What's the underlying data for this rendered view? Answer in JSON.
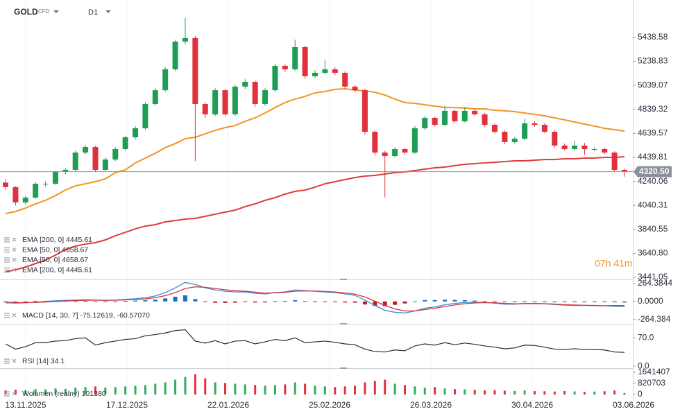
{
  "header": {
    "symbol": "GOLD",
    "instrument_type": "CFD",
    "timeframe": "D1"
  },
  "countdown": "07h 41m",
  "x_labels": [
    "13.11.2025",
    "17.12.2025",
    "22.01.2026",
    "25.02.2026",
    "26.03.2026",
    "30.04.2026",
    "03.06.2026"
  ],
  "chart_data": [
    {
      "type": "candlestick",
      "up_color": "#1f9d55",
      "down_color": "#e0313d",
      "candles": [
        [
          4230,
          4260,
          4170,
          4192
        ],
        [
          4192,
          4200,
          4040,
          4065
        ],
        [
          4065,
          4120,
          4050,
          4105
        ],
        [
          4105,
          4235,
          4095,
          4220
        ],
        [
          4220,
          4240,
          4195,
          4220
        ],
        [
          4220,
          4330,
          4210,
          4319
        ],
        [
          4319,
          4350,
          4300,
          4336
        ],
        [
          4336,
          4495,
          4325,
          4480
        ],
        [
          4480,
          4545,
          4465,
          4526
        ],
        [
          4526,
          4535,
          4320,
          4336
        ],
        [
          4336,
          4440,
          4325,
          4422
        ],
        [
          4422,
          4525,
          4410,
          4509
        ],
        [
          4509,
          4620,
          4495,
          4607
        ],
        [
          4607,
          4700,
          4590,
          4682
        ],
        [
          4682,
          4900,
          4670,
          4884
        ],
        [
          4884,
          5020,
          4870,
          4999
        ],
        [
          4999,
          5190,
          4985,
          5173
        ],
        [
          5173,
          5420,
          5160,
          5404
        ],
        [
          5404,
          5600,
          5380,
          5433
        ],
        [
          5433,
          5450,
          4410,
          4884
        ],
        [
          4884,
          4900,
          4770,
          4798
        ],
        [
          4798,
          5015,
          4785,
          4999
        ],
        [
          4999,
          5010,
          4780,
          4798
        ],
        [
          4798,
          5045,
          4785,
          5029
        ],
        [
          5029,
          5090,
          5010,
          5069
        ],
        [
          5069,
          5080,
          4860,
          4884
        ],
        [
          4884,
          5015,
          4870,
          4999
        ],
        [
          4999,
          5220,
          4985,
          5202
        ],
        [
          5202,
          5215,
          5150,
          5173
        ],
        [
          5173,
          5420,
          5160,
          5358
        ],
        [
          5358,
          5370,
          5095,
          5115
        ],
        [
          5115,
          5165,
          5100,
          5144
        ],
        [
          5144,
          5250,
          5130,
          5173
        ],
        [
          5173,
          5190,
          5125,
          5144
        ],
        [
          5144,
          5155,
          5010,
          5029
        ],
        [
          5029,
          5045,
          4980,
          4999
        ],
        [
          4999,
          5010,
          4630,
          4653
        ],
        [
          4653,
          4665,
          4460,
          4480
        ],
        [
          4480,
          4495,
          4105,
          4451
        ],
        [
          4451,
          4525,
          4440,
          4509
        ],
        [
          4509,
          4520,
          4460,
          4480
        ],
        [
          4480,
          4700,
          4470,
          4682
        ],
        [
          4682,
          4785,
          4670,
          4769
        ],
        [
          4769,
          4780,
          4695,
          4711
        ],
        [
          4711,
          4870,
          4700,
          4827
        ],
        [
          4827,
          4840,
          4725,
          4740
        ],
        [
          4740,
          4860,
          4730,
          4827
        ],
        [
          4827,
          4840,
          4785,
          4798
        ],
        [
          4798,
          4810,
          4695,
          4711
        ],
        [
          4711,
          4725,
          4640,
          4653
        ],
        [
          4653,
          4665,
          4550,
          4567
        ],
        [
          4567,
          4610,
          4555,
          4595
        ],
        [
          4595,
          4760,
          4585,
          4723
        ],
        [
          4723,
          4740,
          4695,
          4711
        ],
        [
          4711,
          4725,
          4640,
          4653
        ],
        [
          4653,
          4665,
          4520,
          4538
        ],
        [
          4538,
          4555,
          4495,
          4509
        ],
        [
          4509,
          4580,
          4495,
          4538
        ],
        [
          4538,
          4560,
          4460,
          4509
        ],
        [
          4509,
          4525,
          4490,
          4509
        ],
        [
          4509,
          4520,
          4465,
          4480
        ],
        [
          4480,
          4490,
          4320,
          4336
        ],
        [
          4336,
          4345,
          4280,
          4320.5
        ]
      ],
      "series": [
        {
          "color": "#f39323",
          "values": [
            3972,
            3989,
            4018,
            4053,
            4082,
            4122,
            4168,
            4203,
            4220,
            4238,
            4261,
            4313,
            4336,
            4394,
            4434,
            4474,
            4521,
            4555,
            4596,
            4607,
            4636,
            4665,
            4688,
            4705,
            4740,
            4769,
            4809,
            4855,
            4896,
            4925,
            4948,
            4977,
            4988,
            5006,
            5011,
            5000,
            4994,
            4982,
            4959,
            4925,
            4896,
            4890,
            4878,
            4867,
            4855,
            4855,
            4850,
            4844,
            4844,
            4832,
            4827,
            4821,
            4809,
            4798,
            4786,
            4769,
            4752,
            4734,
            4717,
            4700,
            4682,
            4671,
            4658.67
          ]
        },
        {
          "color": "#e03a3a",
          "values": [
            3487,
            3504,
            3527,
            3556,
            3585,
            3626,
            3672,
            3701,
            3718,
            3730,
            3753,
            3787,
            3816,
            3845,
            3868,
            3880,
            3903,
            3914,
            3926,
            3932,
            3949,
            3967,
            3984,
            4001,
            4030,
            4053,
            4082,
            4105,
            4134,
            4157,
            4168,
            4192,
            4220,
            4238,
            4255,
            4272,
            4284,
            4290,
            4301,
            4313,
            4319,
            4330,
            4342,
            4353,
            4359,
            4371,
            4382,
            4388,
            4394,
            4399,
            4405,
            4411,
            4411,
            4417,
            4422,
            4422,
            4428,
            4428,
            4434,
            4434,
            4440,
            4440,
            4445.61
          ]
        }
      ],
      "legend": [
        "EMA [200, 0] 4445.61",
        "EMA [50, 0] 4658.67",
        "EMA [50, 0] 4658.67",
        "EMA [200, 0] 4445.61"
      ],
      "ylim": [
        3424,
        5750
      ],
      "yticks": [
        5438.58,
        5238.83,
        5039.07,
        4839.32,
        4639.57,
        4439.81,
        4240.06,
        4040.31,
        3840.55,
        {
          "value": 3640.8,
          "label": "3640.80"
        },
        3441.05
      ],
      "last_price": {
        "value": 4320.5,
        "label": "4320.50"
      }
    },
    {
      "type": "macd",
      "label": "MACD [14, 30, 7] -75.12619, -60.57070",
      "series": [
        {
          "color": "#3a8ad6",
          "values": [
            -20,
            -25,
            -20,
            -10,
            0,
            10,
            15,
            20,
            25,
            20,
            15,
            20,
            30,
            40,
            55,
            80,
            130,
            200,
            280,
            250,
            200,
            170,
            150,
            140,
            140,
            120,
            110,
            130,
            140,
            170,
            160,
            150,
            140,
            130,
            110,
            90,
            20,
            -60,
            -130,
            -160,
            -170,
            -140,
            -100,
            -80,
            -50,
            -30,
            -15,
            -10,
            -15,
            -25,
            -40,
            -40,
            -30,
            -30,
            -35,
            -45,
            -55,
            -60,
            -60,
            -62,
            -65,
            -72,
            -75.12619
          ]
        },
        {
          "color": "#d8343a",
          "values": [
            -10,
            -15,
            -18,
            -15,
            -8,
            0,
            6,
            12,
            17,
            18,
            17,
            18,
            22,
            28,
            38,
            55,
            85,
            130,
            190,
            215,
            208,
            190,
            172,
            158,
            150,
            136,
            124,
            127,
            133,
            151,
            155,
            153,
            147,
            139,
            125,
            108,
            65,
            5,
            -60,
            -110,
            -140,
            -140,
            -120,
            -100,
            -75,
            -52,
            -33,
            -22,
            -18,
            -21,
            -30,
            -35,
            -33,
            -31,
            -33,
            -39,
            -47,
            -53,
            -56,
            -59,
            -62,
            -60,
            -60.5707
          ]
        }
      ],
      "histogram": [
        -10,
        -10,
        -2,
        5,
        8,
        10,
        9,
        8,
        8,
        2,
        -2,
        2,
        8,
        12,
        17,
        25,
        45,
        70,
        90,
        35,
        -8,
        -20,
        -22,
        -18,
        -10,
        -16,
        -14,
        3,
        7,
        19,
        5,
        -3,
        -7,
        -9,
        -15,
        -18,
        -45,
        -65,
        -70,
        -50,
        -30,
        0,
        20,
        20,
        25,
        22,
        18,
        12,
        3,
        -4,
        -10,
        -5,
        3,
        1,
        -2,
        -6,
        -8,
        -7,
        -4,
        -3,
        -3,
        -12,
        -14.55
      ],
      "up_color": "#1d6fc4",
      "down_color": "#b8202a",
      "ylim": [
        -329,
        314
      ],
      "yticks": [
        264.3844,
        {
          "value": 0,
          "label": "0.0000"
        },
        -264.384
      ]
    },
    {
      "type": "line",
      "label": "RSI [14] 34.1",
      "color": "#2b2b2b",
      "values": [
        55,
        42,
        48,
        58,
        58,
        62,
        63,
        68,
        70,
        52,
        58,
        62,
        66,
        68,
        75,
        78,
        82,
        88,
        90,
        62,
        57,
        63,
        55,
        62,
        63,
        55,
        60,
        66,
        63,
        70,
        58,
        60,
        62,
        59,
        55,
        53,
        42,
        36,
        35,
        40,
        38,
        50,
        55,
        52,
        58,
        53,
        57,
        54,
        50,
        47,
        43,
        45,
        52,
        51,
        47,
        42,
        41,
        43,
        41,
        41,
        40,
        35,
        34.1
      ],
      "ylim": [
        -5,
        103
      ],
      "yticks": [
        {
          "value": 70,
          "label": "70.0"
        },
        {
          "value": 0,
          "label": "0.0"
        }
      ]
    },
    {
      "type": "bar",
      "label": "Wolumen (realny) 101380",
      "values": [
        300000,
        350000,
        320000,
        400000,
        380000,
        450000,
        420000,
        500000,
        550000,
        600000,
        520000,
        550000,
        600000,
        650000,
        700000,
        800000,
        900000,
        1100000,
        1300000,
        1500000,
        1200000,
        900000,
        850000,
        800000,
        750000,
        700000,
        650000,
        700000,
        750000,
        900000,
        800000,
        650000,
        600000,
        550000,
        600000,
        650000,
        900000,
        1000000,
        1100000,
        800000,
        700000,
        600000,
        500000,
        550000,
        450000,
        400000,
        380000,
        350000,
        300000,
        320000,
        280000,
        260000,
        300000,
        250000,
        240000,
        220000,
        260000,
        230000,
        200000,
        220000,
        240000,
        300000,
        101380
      ],
      "up_color": "#2fae5c",
      "down_color": "#e0313d",
      "ylim": [
        -462000,
        1900000
      ],
      "yticks": [
        1641407,
        820703,
        0
      ]
    }
  ]
}
